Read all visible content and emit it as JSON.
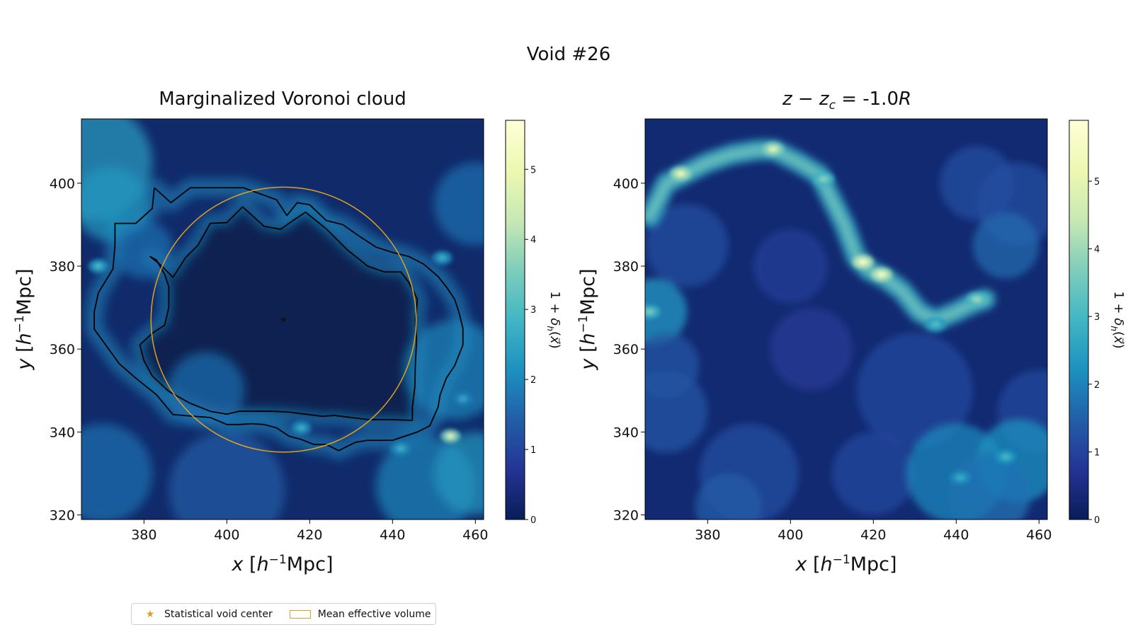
{
  "chart_data": {
    "suptitle": "Void #26",
    "panels": [
      {
        "type": "heatmap",
        "title": "Marginalized Voronoi cloud",
        "xlabel": "x [h⁻¹Mpc]",
        "ylabel": "y [h⁻¹Mpc]",
        "xlim": [
          364.9,
          462.0
        ],
        "ylim": [
          318.9,
          415.5
        ],
        "xticks": [
          "380",
          "400",
          "420",
          "440",
          "460"
        ],
        "yticks": [
          "320",
          "340",
          "360",
          "380",
          "400"
        ],
        "colorbar": {
          "label": "1 + δh(x⃗)",
          "ticks": [
            "0",
            "1",
            "2",
            "3",
            "4",
            "5"
          ],
          "max": 5.7
        },
        "void_center": {
          "x": 413.7,
          "y": 367.1
        },
        "effective_radius": 32.0,
        "contours": [
          {
            "name": "",
            "points": [
              [
                382.5,
                398.9
              ],
              [
                386.5,
                395.3
              ],
              [
                391.2,
                398.9
              ],
              [
                404,
                398.9
              ],
              [
                412,
                396
              ],
              [
                414.5,
                392.2
              ],
              [
                417,
                395.3
              ],
              [
                420,
                394.8
              ],
              [
                424,
                391
              ],
              [
                428,
                390
              ],
              [
                432,
                387.2
              ],
              [
                436,
                384.6
              ],
              [
                440,
                383.3
              ],
              [
                444,
                382.3
              ],
              [
                447.5,
                380.5
              ],
              [
                451,
                377.5
              ],
              [
                453,
                375
              ],
              [
                455,
                372
              ],
              [
                456,
                369
              ],
              [
                457,
                365
              ],
              [
                457,
                361
              ],
              [
                455,
                356
              ],
              [
                453,
                353
              ],
              [
                451.5,
                349
              ],
              [
                451,
                346
              ],
              [
                449,
                341.5
              ],
              [
                446,
                340
              ],
              [
                440,
                338
              ],
              [
                434,
                338
              ],
              [
                431,
                337.5
              ],
              [
                427,
                335.5
              ],
              [
                424,
                337
              ],
              [
                421,
                337
              ],
              [
                418,
                338.2
              ],
              [
                415,
                339
              ],
              [
                412,
                341
              ],
              [
                409,
                341.8
              ],
              [
                406,
                342
              ],
              [
                403,
                341.8
              ],
              [
                400,
                341.8
              ],
              [
                396,
                343.5
              ],
              [
                392,
                343.8
              ],
              [
                387,
                344.2
              ],
              [
                383,
                349
              ],
              [
                378,
                353
              ],
              [
                374,
                356.5
              ],
              [
                368,
                364.8
              ],
              [
                368,
                369
              ],
              [
                369,
                373.6
              ],
              [
                372.5,
                379.3
              ],
              [
                373,
                385
              ],
              [
                373,
                390.3
              ],
              [
                378,
                390.3
              ],
              [
                382,
                393.9
              ],
              [
                382.5,
                398.9
              ]
            ]
          },
          {
            "name": "",
            "points": [
              [
                403.8,
                394.3
              ],
              [
                409,
                389.6
              ],
              [
                413,
                388.9
              ],
              [
                416,
                391
              ],
              [
                419,
                393
              ],
              [
                424,
                389
              ],
              [
                429,
                384
              ],
              [
                434,
                380
              ],
              [
                438,
                378.6
              ],
              [
                442,
                378.6
              ],
              [
                444,
                376
              ],
              [
                446,
                372
              ],
              [
                445.5,
                367
              ],
              [
                445.8,
                362
              ],
              [
                445.5,
                356
              ],
              [
                445.4,
                351
              ],
              [
                444.8,
                346
              ],
              [
                444.8,
                342.8
              ],
              [
                440,
                343
              ],
              [
                434,
                343
              ],
              [
                430,
                343.5
              ],
              [
                426,
                344
              ],
              [
                423,
                343.8
              ],
              [
                419,
                344.3
              ],
              [
                415,
                344.8
              ],
              [
                411,
                345
              ],
              [
                407,
                345
              ],
              [
                403,
                345
              ],
              [
                400,
                344.3
              ],
              [
                396,
                345
              ],
              [
                391,
                347
              ],
              [
                386,
                349.8
              ],
              [
                382,
                353.5
              ],
              [
                380,
                357.2
              ],
              [
                379,
                361
              ],
              [
                382,
                363.8
              ],
              [
                385,
                365.8
              ],
              [
                386,
                370
              ],
              [
                386,
                375
              ],
              [
                385,
                378
              ],
              [
                383,
                381.5
              ],
              [
                381.5,
                382.3
              ],
              [
                384,
                380.3
              ],
              [
                387,
                377.3
              ],
              [
                390,
                382
              ],
              [
                393,
                385
              ],
              [
                396,
                390.3
              ],
              [
                400,
                390.5
              ],
              [
                403.8,
                394.3
              ]
            ]
          }
        ],
        "hotspots": [
          {
            "x": 454,
            "y": 339,
            "value": 4.8
          },
          {
            "x": 452,
            "y": 382,
            "value": 2.8
          },
          {
            "x": 457,
            "y": 348,
            "value": 2.6
          },
          {
            "x": 369,
            "y": 380,
            "value": 3.0
          },
          {
            "x": 442,
            "y": 336,
            "value": 2.8
          },
          {
            "x": 418,
            "y": 341,
            "value": 2.8
          }
        ]
      },
      {
        "type": "heatmap",
        "title": "z − zc = -1.0R",
        "xlabel": "x [h⁻¹Mpc]",
        "ylabel": "y [h⁻¹Mpc]",
        "xlim": [
          364.9,
          462.0
        ],
        "ylim": [
          318.9,
          415.5
        ],
        "xticks": [
          "380",
          "400",
          "420",
          "440",
          "460"
        ],
        "yticks": [
          "320",
          "340",
          "360",
          "380",
          "400"
        ],
        "colorbar": {
          "label": "1 + δh(x⃗)",
          "ticks": [
            "0",
            "1",
            "2",
            "3",
            "4",
            "5"
          ],
          "max": 5.9
        },
        "filament": [
          [
            366,
            392
          ],
          [
            370,
            400
          ],
          [
            374,
            402
          ],
          [
            380,
            405
          ],
          [
            386,
            407
          ],
          [
            392,
            408
          ],
          [
            396,
            408
          ],
          [
            402,
            405
          ],
          [
            407,
            402
          ],
          [
            410,
            396
          ],
          [
            413,
            390
          ],
          [
            416,
            382
          ],
          [
            419,
            379
          ],
          [
            423,
            377
          ],
          [
            427,
            374
          ],
          [
            431,
            369
          ],
          [
            435,
            367
          ],
          [
            440,
            369
          ],
          [
            444,
            371
          ],
          [
            447,
            372
          ]
        ],
        "hotspots": [
          {
            "x": 373.5,
            "y": 402.3,
            "value": 5.2
          },
          {
            "x": 395.8,
            "y": 408.2,
            "value": 5.0
          },
          {
            "x": 417.5,
            "y": 381.0,
            "value": 5.6
          },
          {
            "x": 422.0,
            "y": 378.0,
            "value": 5.5
          },
          {
            "x": 408.0,
            "y": 401.0,
            "value": 3.8
          },
          {
            "x": 445.0,
            "y": 372.0,
            "value": 4.0
          },
          {
            "x": 366.0,
            "y": 369.0,
            "value": 3.6
          },
          {
            "x": 435.0,
            "y": 366.0,
            "value": 3.2
          },
          {
            "x": 441.0,
            "y": 329.0,
            "value": 2.8
          },
          {
            "x": 452.0,
            "y": 334.0,
            "value": 3.0
          }
        ]
      }
    ],
    "legend": {
      "location": "bottom-left",
      "entries": [
        "Statistical void center",
        "Mean effective volume"
      ]
    },
    "colors": {
      "contour": "#000000",
      "void_marker": "#e0a020",
      "colormap": [
        "#0b1d4e",
        "#253494",
        "#225ea8",
        "#1d91c0",
        "#41b6c4",
        "#7fcdbb",
        "#c7e9b4",
        "#edf8b1",
        "#ffffd9"
      ]
    }
  }
}
